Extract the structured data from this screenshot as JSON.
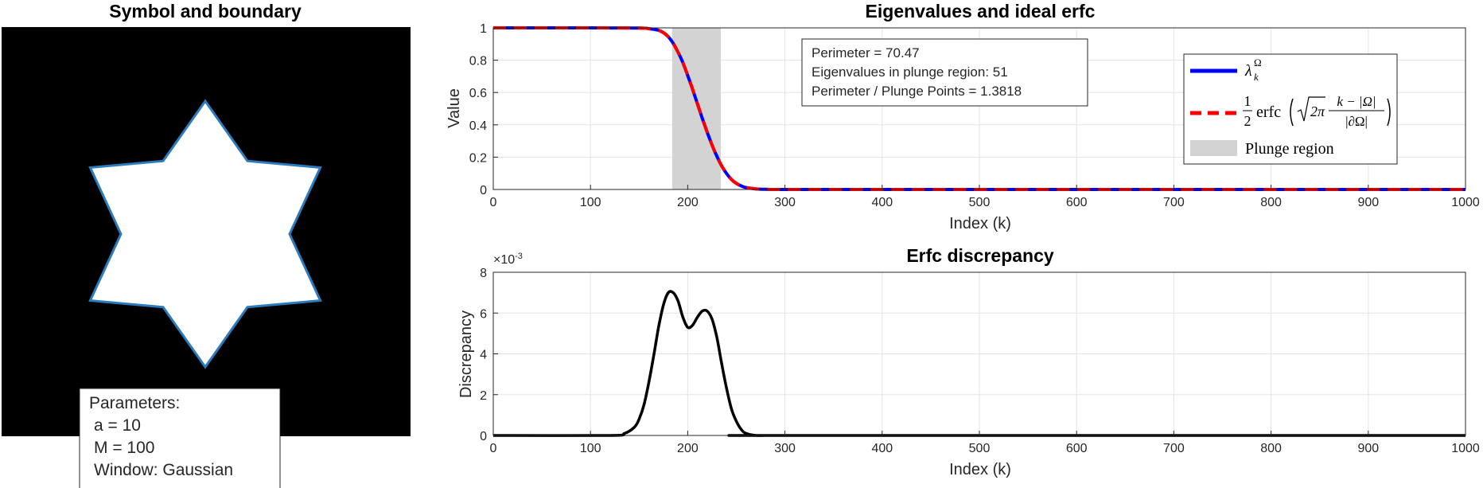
{
  "chart_data": [
    {
      "type": "image",
      "title": "Symbol and boundary",
      "outline_color": "#2b7bbd",
      "params_box": {
        "lines": [
          "Parameters:",
          "a = 10",
          "M = 100",
          "Window: Gaussian"
        ]
      }
    },
    {
      "type": "line",
      "title": "Eigenvalues and ideal erfc",
      "xlabel": "Index (k)",
      "ylabel": "Value",
      "xlim": [
        0,
        1000
      ],
      "ylim": [
        0,
        1
      ],
      "xticks": [
        "0",
        "100",
        "200",
        "300",
        "400",
        "500",
        "600",
        "700",
        "800",
        "900",
        "1000"
      ],
      "yticks": [
        "0",
        "0.2",
        "0.4",
        "0.6",
        "0.8",
        "1"
      ],
      "grid": true,
      "legend_position": "top-right",
      "plunge_region": [
        184,
        234
      ],
      "info_box": {
        "perimeter": "Perimeter = 70.47",
        "eigen_count": "Eigenvalues in plunge region: 51",
        "ratio": "Perimeter / Plunge Points = 1.3818"
      },
      "series": [
        {
          "name": "λ_k^Ω",
          "color": "#0000ff",
          "x": [
            0,
            100,
            150,
            160,
            170,
            175,
            180,
            185,
            190,
            195,
            200,
            205,
            210,
            215,
            220,
            225,
            230,
            235,
            240,
            245,
            250,
            255,
            260,
            270,
            280,
            300,
            400,
            500,
            600,
            700,
            800,
            900,
            1000
          ],
          "values": [
            1,
            1,
            0.999,
            0.995,
            0.985,
            0.97,
            0.945,
            0.905,
            0.85,
            0.785,
            0.705,
            0.62,
            0.53,
            0.44,
            0.355,
            0.275,
            0.205,
            0.145,
            0.098,
            0.062,
            0.038,
            0.022,
            0.012,
            0.004,
            0.001,
            0,
            0,
            0,
            0,
            0,
            0,
            0,
            0
          ]
        },
        {
          "name": "½ erfc(√(2π) (k − |Ω|)/|∂Ω|)",
          "color": "#ff0000",
          "dashed": true,
          "x": [
            0,
            100,
            150,
            160,
            170,
            175,
            180,
            185,
            190,
            195,
            200,
            205,
            210,
            215,
            220,
            225,
            230,
            235,
            240,
            245,
            250,
            255,
            260,
            270,
            280,
            300,
            400,
            500,
            600,
            700,
            800,
            900,
            1000
          ],
          "values": [
            1,
            1,
            0.999,
            0.995,
            0.985,
            0.97,
            0.945,
            0.905,
            0.85,
            0.785,
            0.705,
            0.62,
            0.53,
            0.44,
            0.355,
            0.275,
            0.205,
            0.145,
            0.098,
            0.062,
            0.038,
            0.022,
            0.012,
            0.004,
            0.001,
            0,
            0,
            0,
            0,
            0,
            0,
            0,
            0
          ]
        }
      ],
      "legend": {
        "series1_label": "λ",
        "series1_sub": "k",
        "series1_sup": "Ω",
        "series2_half_num": "1",
        "series2_half_den": "2",
        "series2_func": "erfc",
        "series2_sqrt": "2π",
        "series2_frac_num": "k − |Ω|",
        "series2_frac_den": "|∂Ω|",
        "plunge_label": "Plunge region"
      }
    },
    {
      "type": "line",
      "title": "Erfc discrepancy",
      "xlabel": "Index (k)",
      "ylabel": "Discrepancy",
      "exponent_label": "×10",
      "exponent_value": "-3",
      "xlim": [
        0,
        1000
      ],
      "ylim": [
        0,
        0.008
      ],
      "xticks": [
        "0",
        "100",
        "200",
        "300",
        "400",
        "500",
        "600",
        "700",
        "800",
        "900",
        "1000"
      ],
      "yticks": [
        "0",
        "2",
        "4",
        "6",
        "8"
      ],
      "grid": true,
      "series": [
        {
          "name": "",
          "color": "#000000",
          "x": [
            0,
            120,
            135,
            145,
            150,
            155,
            160,
            165,
            170,
            175,
            180,
            185,
            190,
            195,
            200,
            205,
            210,
            215,
            220,
            225,
            230,
            235,
            240,
            245,
            250,
            255,
            260,
            270,
            280,
            300,
            1000
          ],
          "values": [
            0,
            0,
            0.0001,
            0.0004,
            0.0008,
            0.0015,
            0.0026,
            0.0039,
            0.0053,
            0.0064,
            0.007,
            0.007,
            0.0066,
            0.0058,
            0.0053,
            0.0054,
            0.0058,
            0.0061,
            0.0061,
            0.0057,
            0.0048,
            0.0035,
            0.0023,
            0.0013,
            0.0007,
            0.0003,
            0.0001,
            0,
            0,
            0,
            0
          ]
        }
      ]
    }
  ]
}
